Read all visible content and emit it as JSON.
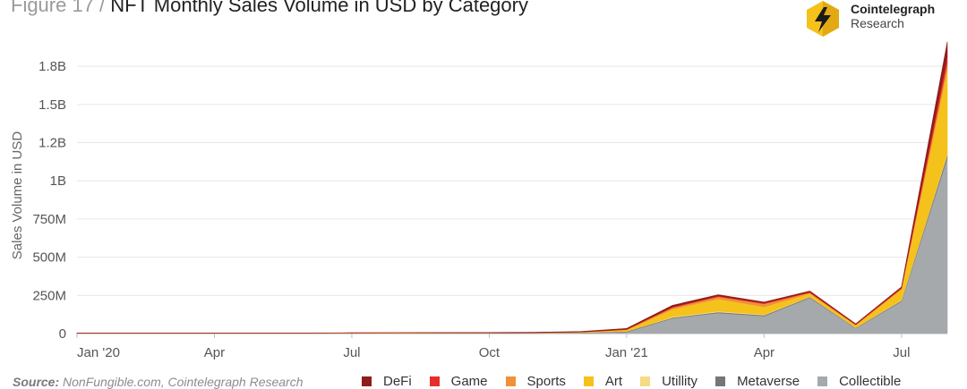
{
  "header": {
    "figure_label": "Figure 17 /",
    "title": "NFT Monthly Sales Volume in USD by Category"
  },
  "brand": {
    "name_line1": "Cointelegraph",
    "name_line2": "Research",
    "logo_icon": "lightning-bolt-hexagon-icon",
    "logo_color": "#F5C21B"
  },
  "source": {
    "label": "Source:",
    "text": "NonFungible.com, Cointelegraph Research"
  },
  "chart_data": {
    "type": "area",
    "stacked": true,
    "title": "NFT Monthly Sales Volume in USD by Category",
    "ylabel": "Sales Volume in USD",
    "xlabel": "",
    "ylim": [
      0,
      1950000000
    ],
    "yticks": [
      {
        "value": 0,
        "label": "0"
      },
      {
        "value": 250000000,
        "label": "250M"
      },
      {
        "value": 500000000,
        "label": "500M"
      },
      {
        "value": 750000000,
        "label": "750M"
      },
      {
        "value": 1000000000,
        "label": "1B"
      },
      {
        "value": 1250000000,
        "label": "1.2B"
      },
      {
        "value": 1500000000,
        "label": "1.5B"
      },
      {
        "value": 1750000000,
        "label": "1.8B"
      }
    ],
    "grid": true,
    "legend_position": "bottom",
    "categories": [
      "Jan '20",
      "Feb '20",
      "Mar '20",
      "Apr '20",
      "May '20",
      "Jun '20",
      "Jul '20",
      "Aug '20",
      "Sep '20",
      "Oct '20",
      "Nov '20",
      "Dec '20",
      "Jan '21",
      "Feb '21",
      "Mar '21",
      "Apr '21",
      "May '21",
      "Jun '21",
      "Jul '21",
      "Aug '21"
    ],
    "xtick_labels": [
      {
        "index": 0,
        "label": "Jan '20"
      },
      {
        "index": 3,
        "label": "Apr"
      },
      {
        "index": 6,
        "label": "Jul"
      },
      {
        "index": 9,
        "label": "Oct"
      },
      {
        "index": 12,
        "label": "Jan '21"
      },
      {
        "index": 15,
        "label": "Apr"
      },
      {
        "index": 18,
        "label": "Jul"
      }
    ],
    "series": [
      {
        "name": "Collectible",
        "color": "#A6A9AB",
        "values": [
          1500000,
          1500000,
          1500000,
          1500000,
          1500000,
          1500000,
          2000000,
          2000000,
          2500000,
          2500000,
          3000000,
          5000000,
          10000000,
          100000000,
          135000000,
          115000000,
          235000000,
          35000000,
          210000000,
          1150000000
        ]
      },
      {
        "name": "Metaverse",
        "color": "#737779",
        "values": [
          1000000,
          1000000,
          1000000,
          1000000,
          1000000,
          1000000,
          1500000,
          1500000,
          1500000,
          1500000,
          2000000,
          2000000,
          4000000,
          5000000,
          6000000,
          5000000,
          5000000,
          3000000,
          6000000,
          20000000
        ]
      },
      {
        "name": "Utillity",
        "color": "#F7DA86",
        "values": [
          100000,
          100000,
          100000,
          100000,
          100000,
          100000,
          100000,
          100000,
          100000,
          100000,
          100000,
          100000,
          500000,
          5000000,
          6000000,
          5000000,
          3000000,
          2000000,
          4000000,
          10000000
        ]
      },
      {
        "name": "Art",
        "color": "#F5C21B",
        "values": [
          500000,
          500000,
          500000,
          500000,
          500000,
          500000,
          500000,
          1000000,
          1000000,
          1000000,
          1500000,
          3000000,
          10000000,
          50000000,
          80000000,
          50000000,
          20000000,
          15000000,
          70000000,
          550000000
        ]
      },
      {
        "name": "Sports",
        "color": "#F0913A",
        "values": [
          100000,
          100000,
          100000,
          100000,
          100000,
          100000,
          100000,
          100000,
          100000,
          100000,
          100000,
          100000,
          1000000,
          10000000,
          15000000,
          20000000,
          5000000,
          3000000,
          5000000,
          40000000
        ]
      },
      {
        "name": "Game",
        "color": "#E62C2C",
        "values": [
          300000,
          300000,
          300000,
          300000,
          300000,
          300000,
          300000,
          300000,
          300000,
          300000,
          300000,
          500000,
          3000000,
          5000000,
          5000000,
          5000000,
          5000000,
          3000000,
          5000000,
          50000000
        ]
      },
      {
        "name": "DeFi",
        "color": "#8E1E1A",
        "values": [
          500000,
          500000,
          500000,
          500000,
          500000,
          600000,
          700000,
          900000,
          1000000,
          1500000,
          2000000,
          2500000,
          5000000,
          10000000,
          8000000,
          6000000,
          5000000,
          3000000,
          5000000,
          90000000
        ]
      }
    ],
    "legend_order": [
      "DeFi",
      "Game",
      "Sports",
      "Art",
      "Utillity",
      "Metaverse",
      "Collectible"
    ]
  }
}
